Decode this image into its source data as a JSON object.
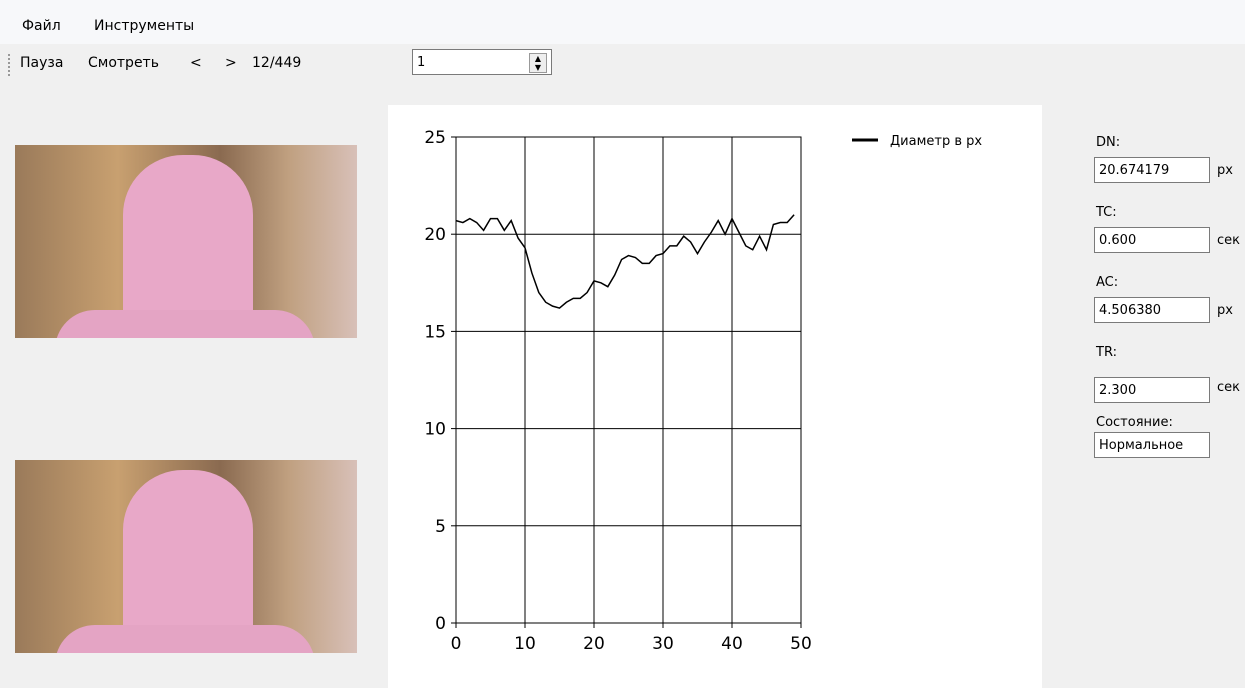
{
  "menu": [
    "Файл",
    "Инструменты"
  ],
  "toolbar": {
    "buttons": [
      "Пауза",
      "Смотреть",
      "<",
      ">"
    ],
    "frame": "12/449",
    "spinner": "1"
  },
  "chart_data": {
    "type": "line",
    "x": [
      0,
      1,
      2,
      3,
      4,
      5,
      6,
      7,
      8,
      9,
      10,
      11,
      12,
      13,
      14,
      15,
      16,
      17,
      18,
      19,
      20,
      21,
      22,
      23,
      24,
      25,
      26,
      27,
      28,
      29,
      30,
      31,
      32,
      33,
      34,
      35,
      36,
      37,
      38,
      39,
      40,
      41,
      42,
      43,
      44,
      45,
      46,
      47,
      48,
      49
    ],
    "series": [
      {
        "name": "Диаметр в px",
        "color": "#000000",
        "values": [
          20.7,
          20.6,
          20.8,
          20.6,
          20.2,
          20.8,
          20.8,
          20.2,
          20.7,
          19.8,
          19.3,
          18.0,
          17.0,
          16.5,
          16.3,
          16.2,
          16.5,
          16.7,
          16.7,
          17.0,
          17.6,
          17.5,
          17.3,
          17.9,
          18.7,
          18.9,
          18.8,
          18.5,
          18.5,
          18.9,
          19.0,
          19.4,
          19.4,
          19.9,
          19.6,
          19.0,
          19.6,
          20.1,
          20.7,
          20.0,
          20.8,
          20.1,
          19.4,
          19.2,
          19.9,
          19.2,
          20.5,
          20.6,
          20.6,
          21.0
        ]
      }
    ],
    "xlim": [
      0,
      50
    ],
    "xticks": [
      0,
      10,
      20,
      30,
      40,
      50
    ],
    "ylim": [
      0,
      25
    ],
    "yticks": [
      0,
      5,
      10,
      15,
      20,
      25
    ],
    "grid": true,
    "legend": "top-right"
  },
  "fields": [
    {
      "label": "DN:",
      "value": "20.674179",
      "unit": "px"
    },
    {
      "label": "TC:",
      "value": "0.600",
      "unit": "сек"
    },
    {
      "label": "AC:",
      "value": "4.506380",
      "unit": "px"
    },
    {
      "label": "TR:",
      "value": "2.300",
      "unit": "сек"
    },
    {
      "label": "Состояние:",
      "value": "Нормальное"
    }
  ]
}
